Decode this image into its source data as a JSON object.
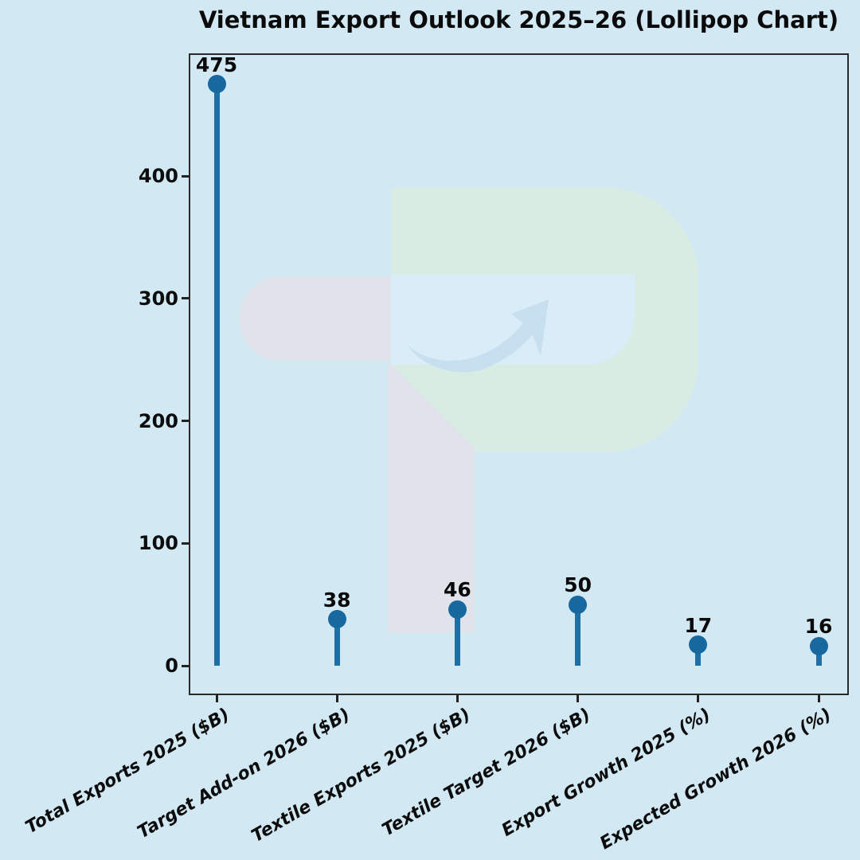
{
  "chart_data": {
    "type": "bar",
    "variant": "lollipop",
    "title": "Vietnam Export Outlook 2025–26 (Lollipop Chart)",
    "categories": [
      "Total Exports 2025 ($B)",
      "Target Add-on 2026 ($B)",
      "Textile Exports 2025 ($B)",
      "Textile Target 2026 ($B)",
      "Export Growth 2025 (%)",
      "Expected Growth 2026 (%)"
    ],
    "values": [
      475,
      38,
      46,
      50,
      17,
      16
    ],
    "yticks": [
      0,
      100,
      200,
      300,
      400
    ],
    "ylim": [
      0,
      500
    ],
    "grid": false,
    "legend": null,
    "xlabel": "",
    "ylabel": "",
    "colors": {
      "stem": "#1d6fa6",
      "dot": "#17689e",
      "background": "#d2e9f4",
      "text": "#0c0c0c",
      "spine": "#2a2a2a"
    },
    "watermark": {
      "description": "faint TP logo with upward swoosh arrow",
      "gray": "#e0e4ea",
      "green": "#d9ece3",
      "counter_blue": "#d9edf8",
      "arrow_blue": "#c8dff0"
    }
  }
}
